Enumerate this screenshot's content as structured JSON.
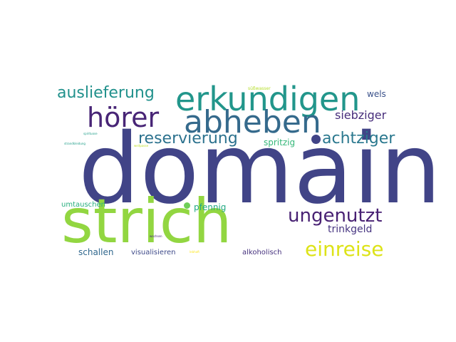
{
  "cloud": {
    "words": {
      "domain": {
        "text": "domain",
        "color": "#414487"
      },
      "strich": {
        "text": "strich",
        "color": "#92d641"
      },
      "erkundigen": {
        "text": "erkundigen",
        "color": "#22968b"
      },
      "abheben": {
        "text": "abheben",
        "color": "#356a8c"
      },
      "horer": {
        "text": "hörer",
        "color": "#482576"
      },
      "auslieferung": {
        "text": "auslieferung",
        "color": "#21918c"
      },
      "reservierung": {
        "text": "reservierung",
        "color": "#2c728e"
      },
      "achtziger": {
        "text": "achtziger",
        "color": "#2a788e"
      },
      "siebziger": {
        "text": "siebziger",
        "color": "#472d7b"
      },
      "wels": {
        "text": "wels",
        "color": "#3b528b"
      },
      "ungenutzt": {
        "text": "ungenutzt",
        "color": "#482173"
      },
      "einreise": {
        "text": "einreise",
        "color": "#dde318"
      },
      "trinkgeld": {
        "text": "trinkgeld",
        "color": "#463480"
      },
      "spritzig": {
        "text": "spritzig",
        "color": "#35b779"
      },
      "umtauschen": {
        "text": "umtauschen",
        "color": "#29af7f"
      },
      "pfennig": {
        "text": "pfennig",
        "color": "#22a884"
      },
      "schallen": {
        "text": "schallen",
        "color": "#31688e"
      },
      "visualisieren": {
        "text": "visualisieren",
        "color": "#3e4a89"
      },
      "alkoholisch": {
        "text": "alkoholisch",
        "color": "#46327e"
      },
      "susswasser": {
        "text": "süßwasser",
        "color": "#b5de2b"
      },
      "spirituose": {
        "text": "spirituose",
        "color": "#1f9e89"
      },
      "strandkleidung": {
        "text": "strandkleidung",
        "color": "#1f9e89"
      },
      "weitpasse": {
        "text": "weitpasse",
        "color": "#bddf26"
      },
      "wachsen": {
        "text": "wachsen",
        "color": "#482878"
      },
      "lebhaft": {
        "text": "lebhaft",
        "color": "#fde725"
      }
    },
    "dots": {
      "dot_a": {
        "color": "#414487"
      },
      "dot_b": {
        "color": "#6ece58"
      }
    }
  }
}
